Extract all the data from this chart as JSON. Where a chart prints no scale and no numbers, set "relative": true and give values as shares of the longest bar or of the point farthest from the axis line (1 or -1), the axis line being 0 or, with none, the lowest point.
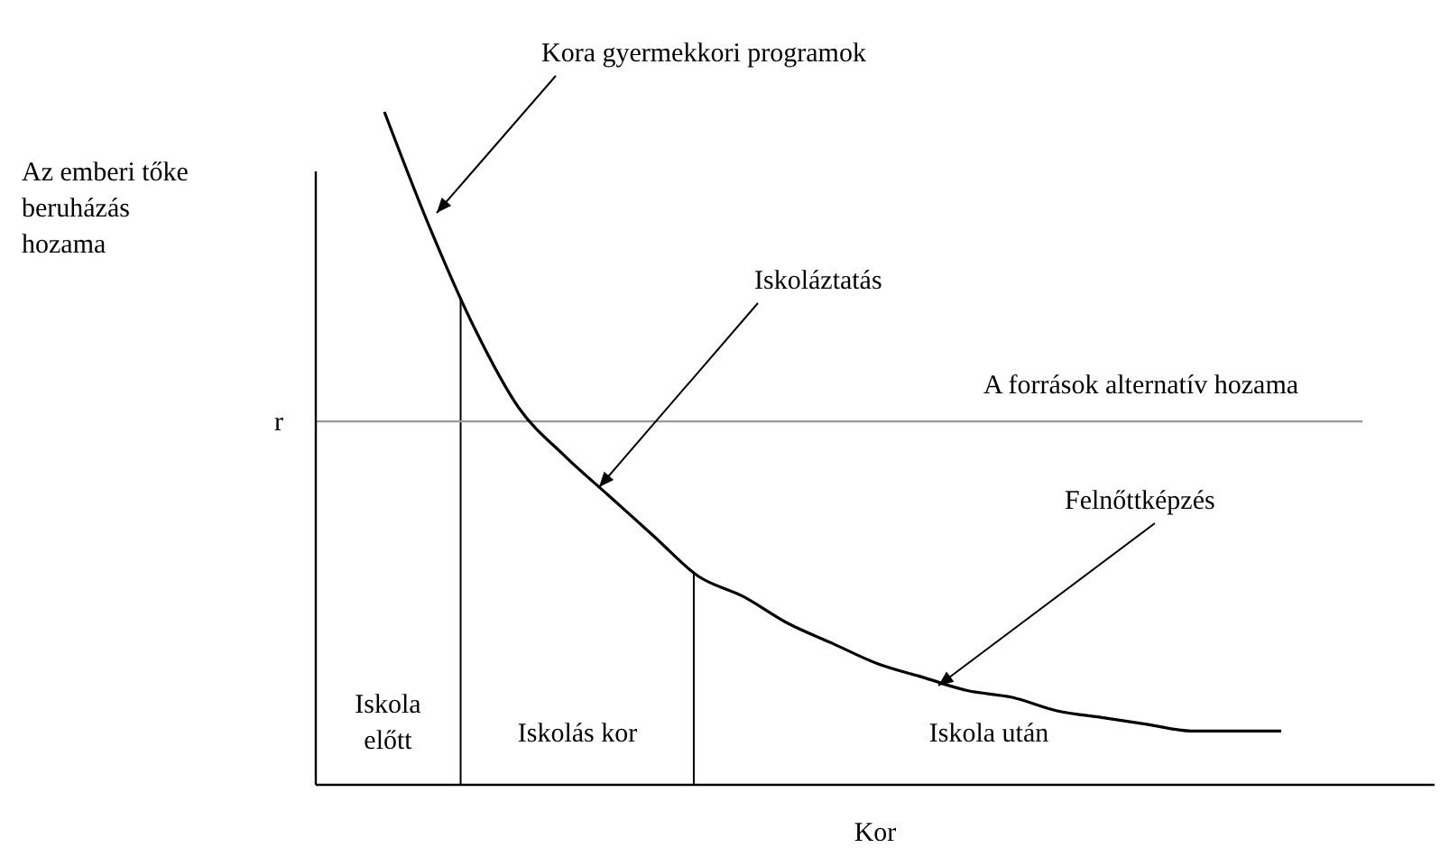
{
  "chart_data": {
    "type": "line",
    "relative": true,
    "xlabel": "Kor",
    "categories": [
      null,
      null,
      null,
      null,
      null,
      null,
      null,
      null,
      null,
      null,
      null,
      null,
      null,
      null,
      null,
      null,
      null,
      null,
      null,
      null,
      null
    ],
    "series": [
      {
        "color": "#000000",
        "values": [
          1.0,
          0.83,
          0.68,
          0.56,
          0.49,
          0.43,
          0.37,
          0.31,
          0.28,
          0.24,
          0.21,
          0.18,
          0.16,
          0.14,
          0.13,
          0.11,
          0.1,
          0.09,
          0.08,
          0.08,
          0.08
        ]
      }
    ],
    "ref_lines": [
      {
        "axis": "y",
        "value": 0.54,
        "label": "r",
        "color": "#999999"
      }
    ],
    "annotations": [
      "Kora gyermekkori programok",
      "Iskoláztatás",
      "Felnőttképzés",
      "A források alternatív hozama",
      "Az emberi tőke beruházás hozama",
      "Iskola előtt",
      "Iskolás kor",
      "Iskola után"
    ],
    "marker": "none",
    "line_style": "solid"
  }
}
